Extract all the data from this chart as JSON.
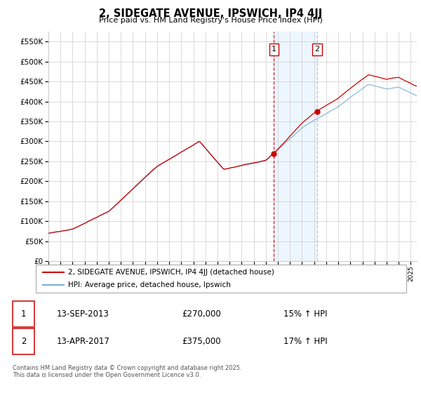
{
  "title": "2, SIDEGATE AVENUE, IPSWICH, IP4 4JJ",
  "subtitle": "Price paid vs. HM Land Registry's House Price Index (HPI)",
  "ytick_values": [
    0,
    50000,
    100000,
    150000,
    200000,
    250000,
    300000,
    350000,
    400000,
    450000,
    500000,
    550000
  ],
  "ylim": [
    0,
    575000
  ],
  "sale1_t": 2013.667,
  "sale1_price": 270000,
  "sale2_t": 2017.25,
  "sale2_price": 375000,
  "legend_line1": "2, SIDEGATE AVENUE, IPSWICH, IP4 4JJ (detached house)",
  "legend_line2": "HPI: Average price, detached house, Ipswich",
  "footnote": "Contains HM Land Registry data © Crown copyright and database right 2025.\nThis data is licensed under the Open Government Licence v3.0.",
  "line_color_red": "#cc0000",
  "line_color_blue": "#7aaed6",
  "shade_color": "#ddeeff",
  "grid_color": "#cccccc",
  "vline1_color": "#cc0000",
  "vline2_color": "#aabbdd",
  "box_edge_color": "#cc0000",
  "background_color": "#ffffff",
  "xlim_start": 1995.0,
  "xlim_end": 2025.5
}
